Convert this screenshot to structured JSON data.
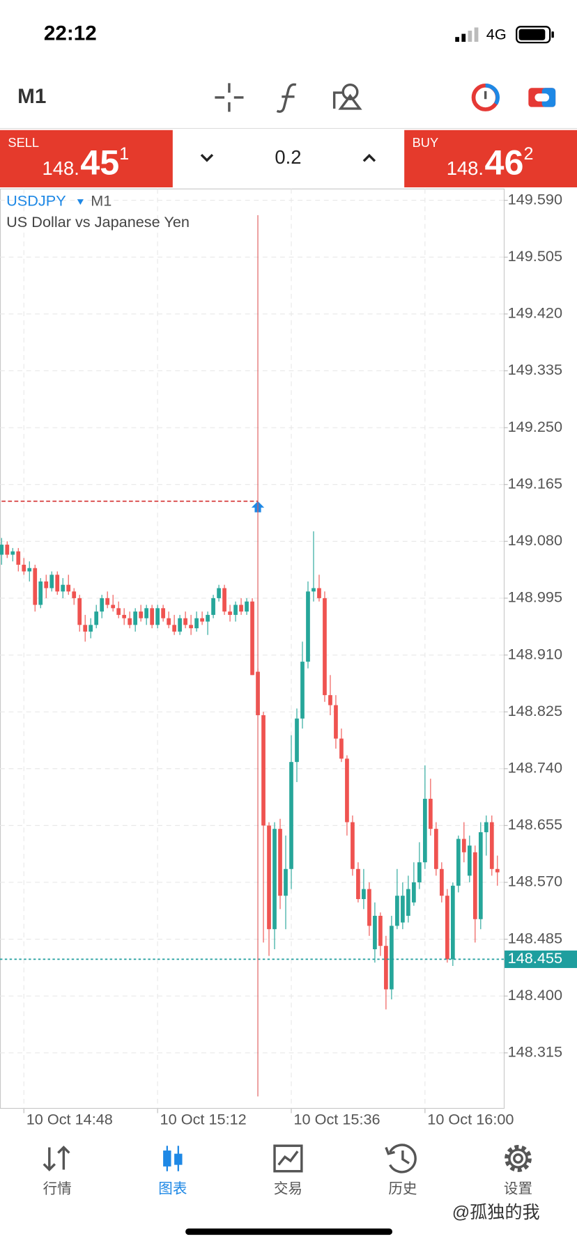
{
  "status_bar": {
    "time": "22:12",
    "network": "4G"
  },
  "toolbar": {
    "timeframe": "M1"
  },
  "trade_panel": {
    "sell": {
      "label": "SELL",
      "price_main": "148.",
      "price_big": "45",
      "price_small": "1"
    },
    "volume": "0.2",
    "buy": {
      "label": "BUY",
      "price_main": "148.",
      "price_big": "46",
      "price_small": "2"
    }
  },
  "chart_header": {
    "symbol": "USDJPY",
    "timeframe": "M1",
    "description": "US Dollar vs Japanese Yen"
  },
  "chart_data": {
    "type": "candlestick",
    "up_color": "#26a69a",
    "down_color": "#ef5350",
    "categories": [
      null,
      null,
      null,
      null,
      "10 Oct 14:48",
      null,
      null,
      null,
      null,
      null,
      null,
      null,
      null,
      null,
      null,
      null,
      null,
      null,
      null,
      null,
      null,
      null,
      null,
      null,
      null,
      null,
      null,
      null,
      "10 Oct 15:12",
      null,
      null,
      null,
      null,
      null,
      null,
      null,
      null,
      null,
      null,
      null,
      null,
      null,
      null,
      null,
      null,
      null,
      null,
      null,
      null,
      null,
      null,
      null,
      "10 Oct 15:36",
      null,
      null,
      null,
      null,
      null,
      null,
      null,
      null,
      null,
      null,
      null,
      null,
      null,
      null,
      null,
      null,
      null,
      null,
      null,
      null,
      null,
      null,
      null,
      "10 Oct 16:00",
      null,
      null,
      null,
      null,
      null,
      null,
      null,
      null,
      null,
      null,
      null,
      null,
      null
    ],
    "open": [
      149.06,
      149.075,
      149.06,
      149.065,
      149.045,
      149.035,
      149.04,
      148.985,
      149.02,
      149.01,
      149.03,
      149.005,
      149.015,
      149.005,
      148.995,
      148.955,
      148.945,
      148.955,
      148.975,
      148.995,
      148.985,
      148.98,
      148.97,
      148.965,
      148.955,
      148.975,
      148.965,
      148.98,
      148.955,
      148.98,
      148.965,
      148.955,
      148.945,
      148.965,
      148.955,
      148.95,
      148.965,
      148.96,
      148.97,
      148.995,
      149.01,
      148.975,
      148.97,
      148.985,
      148.975,
      148.99,
      148.885,
      148.82,
      148.655,
      148.5,
      148.65,
      148.55,
      148.59,
      148.75,
      148.815,
      148.9,
      149.005,
      149.01,
      148.995,
      148.85,
      148.835,
      148.785,
      148.755,
      148.66,
      148.59,
      148.545,
      148.56,
      148.47,
      148.52,
      148.475,
      148.41,
      148.505,
      148.51,
      148.52,
      148.54,
      148.57,
      148.6,
      148.695,
      148.65,
      148.59,
      148.55,
      148.455,
      148.565,
      148.635,
      148.58,
      148.615,
      148.515,
      148.645,
      148.66,
      148.59
    ],
    "high": [
      149.085,
      149.08,
      149.07,
      149.07,
      149.055,
      149.05,
      149.045,
      149.025,
      149.03,
      149.035,
      149.035,
      149.025,
      149.03,
      149.01,
      149.0,
      148.97,
      148.965,
      148.985,
      149.0,
      149.005,
      149.0,
      148.99,
      148.98,
      148.975,
      148.98,
      148.985,
      148.985,
      148.985,
      148.985,
      148.985,
      148.975,
      148.97,
      148.97,
      148.975,
      148.97,
      148.975,
      148.975,
      148.975,
      149.0,
      149.015,
      149.015,
      148.985,
      148.99,
      148.995,
      148.995,
      148.995,
      148.89,
      148.825,
      148.66,
      148.66,
      148.665,
      148.64,
      148.79,
      148.83,
      148.93,
      149.02,
      149.095,
      149.03,
      149.005,
      148.88,
      148.85,
      148.8,
      148.76,
      148.67,
      148.6,
      148.59,
      148.57,
      148.54,
      148.525,
      148.49,
      148.52,
      148.59,
      148.57,
      148.58,
      148.6,
      148.63,
      148.745,
      148.725,
      148.66,
      148.6,
      148.56,
      148.57,
      148.64,
      148.66,
      148.64,
      148.625,
      148.66,
      148.67,
      148.67,
      148.61
    ],
    "low": [
      149.045,
      149.055,
      149.05,
      149.035,
      149.03,
      149.02,
      148.975,
      148.98,
      148.995,
      149.005,
      149.0,
      148.995,
      149.0,
      148.985,
      148.945,
      148.93,
      148.935,
      148.95,
      148.965,
      148.98,
      148.975,
      148.965,
      148.955,
      148.95,
      148.945,
      148.96,
      148.955,
      148.95,
      148.95,
      148.96,
      148.95,
      148.94,
      148.94,
      148.95,
      148.94,
      148.945,
      148.955,
      148.94,
      148.965,
      148.99,
      148.97,
      148.96,
      148.96,
      148.97,
      148.97,
      148.88,
      148.83,
      148.48,
      148.46,
      148.47,
      148.53,
      148.5,
      148.56,
      148.72,
      148.8,
      148.89,
      148.99,
      148.99,
      148.84,
      148.82,
      148.77,
      148.75,
      148.64,
      148.58,
      148.54,
      148.53,
      148.49,
      148.45,
      148.46,
      148.38,
      148.395,
      148.5,
      148.5,
      148.51,
      148.535,
      148.56,
      148.59,
      148.64,
      148.58,
      148.54,
      148.45,
      148.445,
      148.555,
      148.6,
      148.57,
      148.48,
      148.5,
      148.61,
      148.58,
      148.565
    ],
    "close": [
      149.075,
      149.06,
      149.065,
      149.045,
      149.035,
      149.04,
      148.985,
      149.02,
      149.01,
      149.03,
      149.005,
      149.015,
      149.005,
      148.995,
      148.955,
      148.945,
      148.955,
      148.975,
      148.995,
      148.985,
      148.98,
      148.97,
      148.965,
      148.955,
      148.975,
      148.965,
      148.98,
      148.955,
      148.98,
      148.965,
      148.955,
      148.945,
      148.965,
      148.955,
      148.95,
      148.965,
      148.96,
      148.97,
      148.995,
      149.01,
      148.975,
      148.97,
      148.985,
      148.975,
      148.99,
      148.88,
      148.82,
      148.655,
      148.5,
      148.65,
      148.55,
      148.59,
      148.75,
      148.815,
      148.9,
      149.005,
      149.01,
      148.995,
      148.85,
      148.835,
      148.785,
      148.755,
      148.66,
      148.59,
      148.545,
      148.56,
      148.505,
      148.52,
      148.475,
      148.41,
      148.505,
      148.55,
      148.55,
      148.56,
      148.57,
      148.6,
      148.695,
      148.65,
      148.59,
      148.55,
      148.455,
      148.565,
      148.635,
      148.615,
      148.625,
      148.515,
      148.645,
      148.66,
      148.59,
      148.585
    ],
    "ylim": [
      148.232,
      149.607
    ],
    "yticks": [
      {
        "value": 149.59,
        "label": "149.590"
      },
      149.505,
      {
        "value": 149.42,
        "label": "149.420"
      },
      149.335,
      {
        "value": 149.25,
        "label": "149.250"
      },
      149.165,
      {
        "value": 149.08,
        "label": "149.080"
      },
      148.995,
      {
        "value": 148.91,
        "label": "148.910"
      },
      148.825,
      {
        "value": 148.74,
        "label": "148.740"
      },
      148.655,
      {
        "value": 148.57,
        "label": "148.570"
      },
      148.485,
      {
        "value": 148.4,
        "label": "148.400"
      },
      148.315
    ],
    "grid": true,
    "last_price": 148.455,
    "order_price": 149.14
  },
  "tabs": [
    "行情",
    "图表",
    "交易",
    "历史",
    "设置"
  ],
  "watermark": "@孤独的我"
}
